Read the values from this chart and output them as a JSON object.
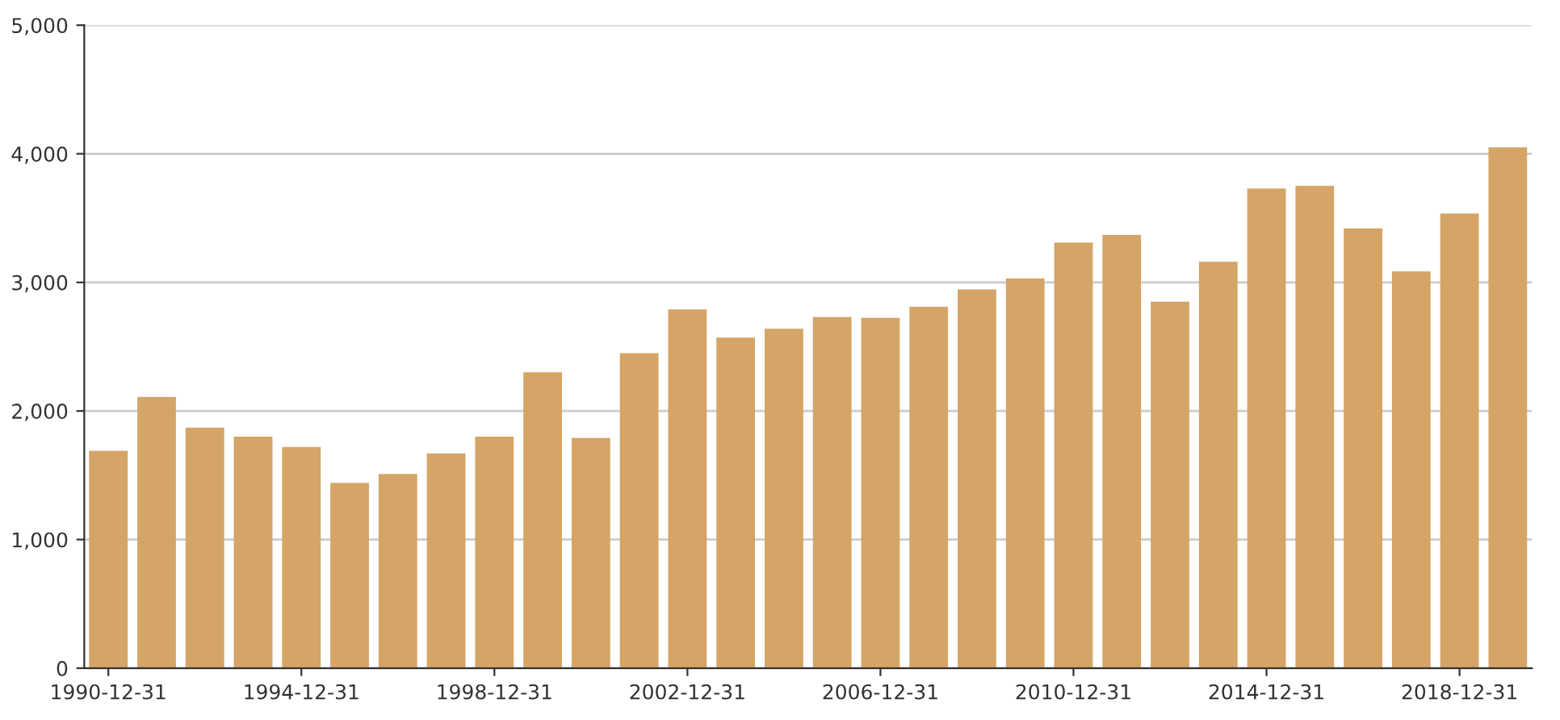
{
  "chart_data": {
    "type": "bar",
    "categories": [
      "1990-12-31",
      null,
      null,
      null,
      "1994-12-31",
      null,
      null,
      null,
      "1998-12-31",
      null,
      null,
      null,
      "2002-12-31",
      null,
      null,
      null,
      "2006-12-31",
      null,
      null,
      null,
      "2010-12-31",
      null,
      null,
      null,
      "2014-12-31",
      null,
      null,
      null,
      "2018-12-31",
      null
    ],
    "values": [
      1690,
      2110,
      1870,
      1800,
      1720,
      1440,
      1510,
      1670,
      1800,
      2300,
      1790,
      2450,
      2790,
      2570,
      2640,
      2730,
      2725,
      2810,
      2945,
      3030,
      3310,
      3370,
      2850,
      3160,
      3730,
      3750,
      3420,
      3085,
      3535,
      4050
    ],
    "color": "#d4a566",
    "ylim": [
      0,
      5000
    ],
    "yticks": [
      {
        "value": 0,
        "label": "0"
      },
      {
        "value": 1000,
        "label": "1,000"
      },
      {
        "value": 2000,
        "label": "2,000"
      },
      {
        "value": 3000,
        "label": "3,000"
      },
      {
        "value": 4000,
        "label": "4,000"
      },
      {
        "value": 5000,
        "label": "5,000"
      }
    ],
    "grid": "y"
  }
}
